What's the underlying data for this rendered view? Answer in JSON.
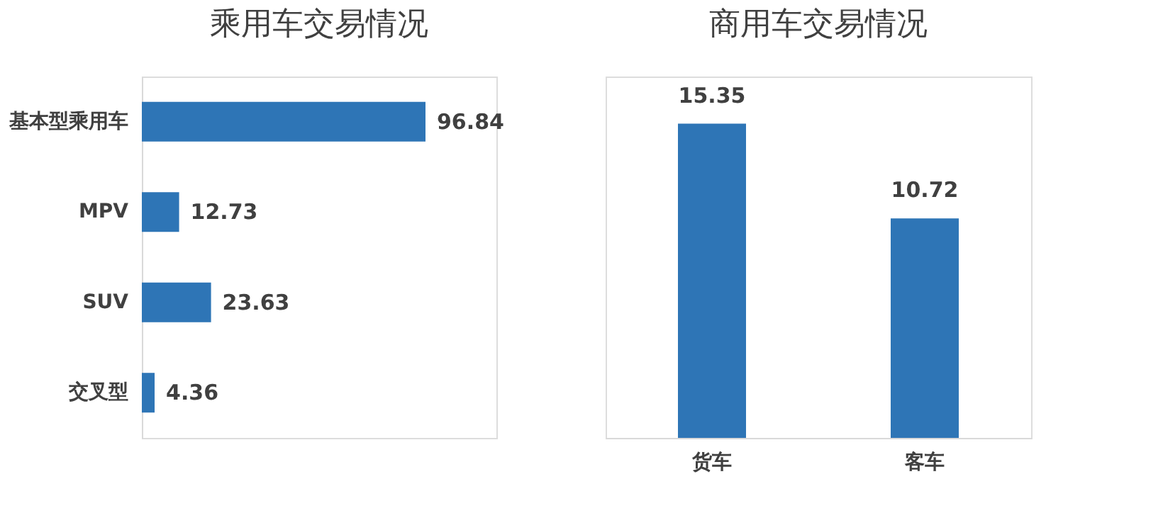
{
  "chart_data": [
    {
      "type": "bar",
      "title": "乘用车交易情况",
      "orientation": "horizontal",
      "categories": [
        "基本型乘用车",
        "MPV",
        "SUV",
        "交叉型"
      ],
      "values": [
        96.84,
        12.73,
        23.63,
        4.36
      ],
      "color": "#2e75b6",
      "data_labels": true
    },
    {
      "type": "bar",
      "title": "商用车交易情况",
      "categories": [
        "货车",
        "客车"
      ],
      "values": [
        15.35,
        10.72
      ],
      "color": "#2e75b6",
      "data_labels": true
    }
  ]
}
